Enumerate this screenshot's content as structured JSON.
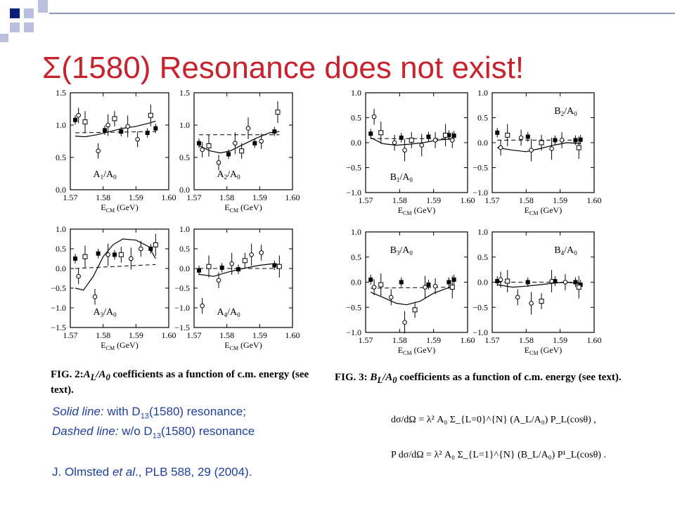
{
  "slide": {
    "title": "Σ(1580) Resonance does not exist!",
    "legend_solid_label": "Solid line:",
    "legend_solid_text": " with D",
    "legend_solid_sub": "13",
    "legend_solid_tail": "(1580) resonance;",
    "legend_dashed_label": "Dashed line:",
    "legend_dashed_text": " w/o D",
    "legend_dashed_sub": "13",
    "legend_dashed_tail": "(1580) resonance",
    "ref_pre": "J. Olmsted ",
    "ref_etal": "et al",
    "ref_post": "., PLB 588, 29 (2004).",
    "fig2_caption_lead": "FIG. 2:",
    "fig2_caption_body": " A",
    "fig2_caption_rest": " coefficients as a function of c.m. energy (see text).",
    "fig3_caption_lead": "FIG. 3:",
    "fig3_caption_rest": " coefficients as a function of c.m. energy (see text).",
    "eq1": "dσ/dΩ = λ² A₀ Σ_{L=0}^{N} (A_L/A₀) P_L(cosθ) ,",
    "eq2": "P dσ/dΩ = λ² A₀ Σ_{L=1}^{N} (B_L/A₀) P¹_L(cosθ) ."
  },
  "colors": {
    "title": "#c8232c",
    "text_blue": "#1f3fa0",
    "deco_navy": "#0b1f7a",
    "deco_light": "#b9c0dd"
  },
  "chart_data": [
    {
      "type": "scatter",
      "label": "A1/A0",
      "xlabel": "E_CM (GeV)",
      "xlim": [
        1.57,
        1.6
      ],
      "ylim": [
        0,
        1.5
      ],
      "yticks": [
        "0.0",
        "0.5",
        "1.0",
        "1.5"
      ],
      "xticks": [
        "1.57",
        "1.58",
        "1.59",
        "1.60"
      ],
      "solid_points": [
        [
          1.5715,
          1.08
        ],
        [
          1.5805,
          0.92
        ],
        [
          1.5855,
          0.9
        ],
        [
          1.5935,
          0.88
        ],
        [
          1.596,
          0.95
        ]
      ],
      "open_points": [
        [
          1.5725,
          1.15
        ],
        [
          1.5745,
          1.05
        ],
        [
          1.5785,
          0.6
        ],
        [
          1.5815,
          1.0
        ],
        [
          1.5835,
          1.1
        ],
        [
          1.5875,
          0.98
        ],
        [
          1.5905,
          0.78
        ],
        [
          1.5945,
          1.15
        ]
      ],
      "solid_line": [
        [
          1.5715,
          0.83
        ],
        [
          1.5745,
          0.82
        ],
        [
          1.578,
          0.85
        ],
        [
          1.582,
          0.9
        ],
        [
          1.586,
          0.95
        ],
        [
          1.59,
          0.98
        ],
        [
          1.594,
          1.03
        ],
        [
          1.596,
          1.06
        ]
      ],
      "dashed_line": [
        [
          1.5715,
          0.88
        ],
        [
          1.596,
          0.9
        ]
      ]
    },
    {
      "type": "scatter",
      "label": "A2/A0",
      "xlabel": "E_CM (GeV)",
      "xlim": [
        1.57,
        1.6
      ],
      "ylim": [
        0,
        1.5
      ],
      "yticks": [
        "0.0",
        "0.5",
        "1.0",
        "1.5"
      ],
      "xticks": [
        "1.57",
        "1.58",
        "1.59",
        "1.60"
      ],
      "solid_points": [
        [
          1.5715,
          0.72
        ],
        [
          1.5805,
          0.55
        ],
        [
          1.5885,
          0.72
        ],
        [
          1.5945,
          0.9
        ]
      ],
      "open_points": [
        [
          1.5725,
          0.62
        ],
        [
          1.5745,
          0.68
        ],
        [
          1.5775,
          0.42
        ],
        [
          1.5825,
          0.72
        ],
        [
          1.5845,
          0.6
        ],
        [
          1.5865,
          0.95
        ],
        [
          1.5905,
          0.75
        ],
        [
          1.5955,
          1.2
        ]
      ],
      "solid_line": [
        [
          1.5715,
          0.68
        ],
        [
          1.575,
          0.6
        ],
        [
          1.578,
          0.57
        ],
        [
          1.581,
          0.6
        ],
        [
          1.585,
          0.7
        ],
        [
          1.589,
          0.8
        ],
        [
          1.593,
          0.88
        ],
        [
          1.596,
          0.9
        ]
      ],
      "dashed_line": [
        [
          1.5715,
          0.85
        ],
        [
          1.596,
          0.85
        ]
      ]
    },
    {
      "type": "scatter",
      "label": "A3/A0",
      "xlabel": "E_CM (GeV)",
      "xlim": [
        1.57,
        1.6
      ],
      "ylim": [
        -1.5,
        1.0
      ],
      "yticks": [
        "-1.5",
        "-1.0",
        "-0.5",
        "0.0",
        "0.5",
        "1.0"
      ],
      "xticks": [
        "1.57",
        "1.58",
        "1.59",
        "1.60"
      ],
      "solid_points": [
        [
          1.5715,
          0.25
        ],
        [
          1.5785,
          0.38
        ],
        [
          1.5835,
          0.35
        ],
        [
          1.5945,
          0.5
        ]
      ],
      "open_points": [
        [
          1.5725,
          -0.2
        ],
        [
          1.5745,
          0.3
        ],
        [
          1.5775,
          -0.72
        ],
        [
          1.5815,
          0.35
        ],
        [
          1.5855,
          0.35
        ],
        [
          1.5885,
          0.25
        ],
        [
          1.5915,
          0.5
        ],
        [
          1.596,
          0.6
        ]
      ],
      "solid_line": [
        [
          1.5715,
          -0.5
        ],
        [
          1.574,
          -0.55
        ],
        [
          1.577,
          -0.2
        ],
        [
          1.58,
          0.3
        ],
        [
          1.583,
          0.6
        ],
        [
          1.586,
          0.75
        ],
        [
          1.59,
          0.72
        ],
        [
          1.594,
          0.55
        ],
        [
          1.596,
          0.25
        ]
      ],
      "dashed_line": [
        [
          1.5715,
          0.0
        ],
        [
          1.596,
          0.1
        ]
      ]
    },
    {
      "type": "scatter",
      "label": "A4/A0",
      "xlabel": "E_CM (GeV)",
      "xlim": [
        1.57,
        1.6
      ],
      "ylim": [
        -1.5,
        1.0
      ],
      "yticks": [
        "-1.5",
        "-1.0",
        "-0.5",
        "0.0",
        "0.5",
        "1.0"
      ],
      "xticks": [
        "1.57",
        "1.58",
        "1.59",
        "1.60"
      ],
      "solid_points": [
        [
          1.5715,
          -0.05
        ],
        [
          1.5785,
          0.02
        ],
        [
          1.5835,
          -0.02
        ],
        [
          1.5945,
          0.08
        ]
      ],
      "open_points": [
        [
          1.5725,
          -0.95
        ],
        [
          1.5745,
          0.05
        ],
        [
          1.5775,
          -0.3
        ],
        [
          1.5815,
          0.12
        ],
        [
          1.5855,
          0.2
        ],
        [
          1.5875,
          0.35
        ],
        [
          1.5905,
          0.4
        ],
        [
          1.596,
          0.05
        ]
      ],
      "solid_line": [
        [
          1.5715,
          -0.15
        ],
        [
          1.576,
          -0.2
        ],
        [
          1.58,
          -0.1
        ],
        [
          1.585,
          0.0
        ],
        [
          1.59,
          0.08
        ],
        [
          1.594,
          0.12
        ],
        [
          1.596,
          0.1
        ]
      ],
      "dashed_line": [
        [
          1.5715,
          0.0
        ],
        [
          1.596,
          0.0
        ]
      ]
    },
    {
      "type": "scatter",
      "label": "B1/A0",
      "xlabel": "E_CM (GeV)",
      "xlim": [
        1.57,
        1.6
      ],
      "ylim": [
        -1.0,
        1.0
      ],
      "yticks": [
        "-1.0",
        "-0.5",
        "0.0",
        "0.5",
        "1.0"
      ],
      "xticks": [
        "1.57",
        "1.58",
        "1.59",
        "1.60"
      ],
      "solid_points": [
        [
          1.5715,
          0.18
        ],
        [
          1.5805,
          0.1
        ],
        [
          1.5885,
          0.12
        ],
        [
          1.5945,
          0.15
        ],
        [
          1.596,
          0.14
        ]
      ],
      "open_points": [
        [
          1.5725,
          0.52
        ],
        [
          1.5745,
          0.2
        ],
        [
          1.5785,
          0.0
        ],
        [
          1.5815,
          -0.15
        ],
        [
          1.5835,
          0.05
        ],
        [
          1.5865,
          -0.05
        ],
        [
          1.5905,
          0.05
        ],
        [
          1.5935,
          0.15
        ],
        [
          1.5955,
          0.05
        ]
      ],
      "solid_line": [
        [
          1.5715,
          0.1
        ],
        [
          1.575,
          -0.02
        ],
        [
          1.579,
          -0.05
        ],
        [
          1.583,
          -0.03
        ],
        [
          1.587,
          0.0
        ],
        [
          1.591,
          0.05
        ],
        [
          1.596,
          0.08
        ]
      ],
      "dashed_line": [
        [
          1.5715,
          0.08
        ],
        [
          1.596,
          0.08
        ]
      ]
    },
    {
      "type": "scatter",
      "label": "B2/A0",
      "xlabel": "E_CM (GeV)",
      "xlim": [
        1.57,
        1.6
      ],
      "ylim": [
        -1.0,
        1.0
      ],
      "yticks": [
        "-1.0",
        "-0.5",
        "0.0",
        "0.5",
        "1.0"
      ],
      "xticks": [
        "1.57",
        "1.58",
        "1.59",
        "1.60"
      ],
      "solid_points": [
        [
          1.5715,
          0.2
        ],
        [
          1.5805,
          0.12
        ],
        [
          1.5885,
          0.05
        ],
        [
          1.5945,
          0.05
        ],
        [
          1.596,
          0.06
        ]
      ],
      "open_points": [
        [
          1.5725,
          -0.1
        ],
        [
          1.5745,
          0.15
        ],
        [
          1.5785,
          0.1
        ],
        [
          1.5815,
          -0.15
        ],
        [
          1.5845,
          0.0
        ],
        [
          1.5875,
          -0.12
        ],
        [
          1.5905,
          0.05
        ],
        [
          1.5955,
          -0.1
        ]
      ],
      "solid_line": [
        [
          1.5715,
          -0.1
        ],
        [
          1.576,
          -0.15
        ],
        [
          1.58,
          -0.18
        ],
        [
          1.584,
          -0.12
        ],
        [
          1.588,
          -0.05
        ],
        [
          1.592,
          0.0
        ],
        [
          1.596,
          -0.02
        ]
      ],
      "dashed_line": [
        [
          1.5715,
          0.05
        ],
        [
          1.596,
          0.05
        ]
      ]
    },
    {
      "type": "scatter",
      "label": "B3/A0",
      "xlabel": "E_CM (GeV)",
      "xlim": [
        1.57,
        1.6
      ],
      "ylim": [
        -1.0,
        1.0
      ],
      "yticks": [
        "-1.0",
        "-0.5",
        "0.0",
        "0.5",
        "1.0"
      ],
      "xticks": [
        "1.57",
        "1.58",
        "1.59",
        "1.60"
      ],
      "solid_points": [
        [
          1.5715,
          0.05
        ],
        [
          1.5805,
          0.0
        ],
        [
          1.5885,
          -0.05
        ],
        [
          1.5945,
          0.0
        ],
        [
          1.596,
          0.05
        ]
      ],
      "open_points": [
        [
          1.5725,
          -0.1
        ],
        [
          1.5745,
          -0.05
        ],
        [
          1.5775,
          -0.3
        ],
        [
          1.5815,
          -0.8
        ],
        [
          1.5845,
          -0.55
        ],
        [
          1.5875,
          -0.1
        ],
        [
          1.5905,
          -0.08
        ],
        [
          1.5955,
          -0.1
        ]
      ],
      "solid_line": [
        [
          1.5715,
          -0.2
        ],
        [
          1.575,
          -0.3
        ],
        [
          1.579,
          -0.42
        ],
        [
          1.582,
          -0.45
        ],
        [
          1.586,
          -0.38
        ],
        [
          1.59,
          -0.22
        ],
        [
          1.594,
          -0.12
        ],
        [
          1.596,
          -0.1
        ]
      ],
      "dashed_line": [
        [
          1.5715,
          -0.12
        ],
        [
          1.596,
          -0.1
        ]
      ]
    },
    {
      "type": "scatter",
      "label": "B4/A0",
      "xlabel": "E_CM (GeV)",
      "xlim": [
        1.57,
        1.6
      ],
      "ylim": [
        -1.0,
        1.0
      ],
      "yticks": [
        "-1.0",
        "-0.5",
        "0.0",
        "0.5",
        "1.0"
      ],
      "xticks": [
        "1.57",
        "1.58",
        "1.59",
        "1.60"
      ],
      "solid_points": [
        [
          1.5715,
          0.02
        ],
        [
          1.5805,
          0.0
        ],
        [
          1.5885,
          0.02
        ],
        [
          1.5945,
          0.0
        ],
        [
          1.596,
          -0.05
        ]
      ],
      "open_points": [
        [
          1.5725,
          0.05
        ],
        [
          1.5745,
          0.02
        ],
        [
          1.5775,
          -0.3
        ],
        [
          1.5815,
          -0.42
        ],
        [
          1.5845,
          -0.38
        ],
        [
          1.5875,
          0.02
        ],
        [
          1.5915,
          0.0
        ],
        [
          1.5955,
          -0.1
        ]
      ],
      "solid_line": [
        [
          1.5715,
          -0.05
        ],
        [
          1.576,
          -0.1
        ],
        [
          1.58,
          -0.08
        ],
        [
          1.584,
          -0.05
        ],
        [
          1.588,
          -0.02
        ],
        [
          1.592,
          0.0
        ],
        [
          1.596,
          -0.03
        ]
      ],
      "dashed_line": [
        [
          1.5715,
          0.0
        ],
        [
          1.596,
          0.0
        ]
      ]
    }
  ]
}
